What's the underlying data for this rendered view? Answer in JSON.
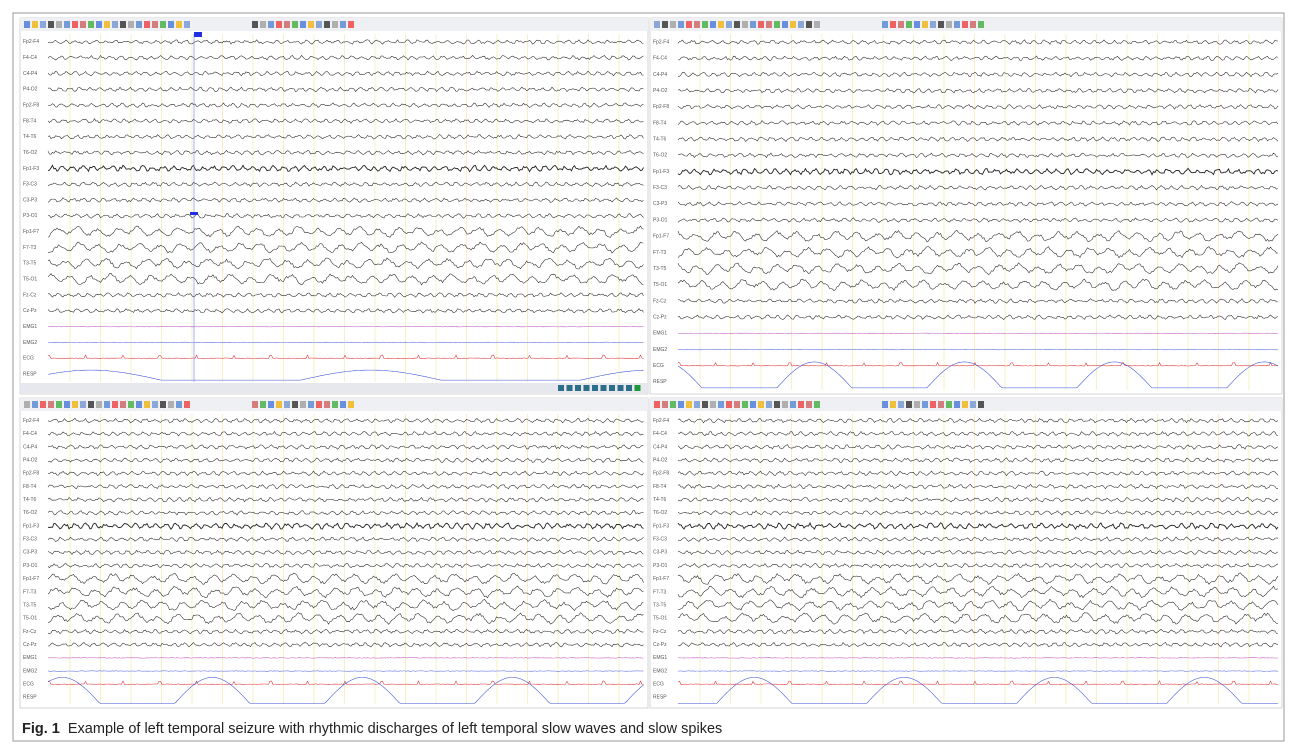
{
  "figure": {
    "label": "Fig. 1",
    "caption": "Example of left temporal seizure with rhythmic discharges of left temporal slow waves and slow spikes"
  },
  "channels": [
    "Fp2-F4",
    "F4-C4",
    "C4-P4",
    "P4-O2",
    "Fp2-F8",
    "F8-T4",
    "T4-T6",
    "T6-O2",
    "Fp1-F3",
    "F3-C3",
    "C3-P3",
    "P3-O1",
    "Fp1-F7",
    "F7-T3",
    "T3-T5",
    "T5-O1",
    "Fz-Cz",
    "Cz-Pz",
    "EMG1",
    "EMG2",
    "ECG",
    "RESP"
  ]
}
